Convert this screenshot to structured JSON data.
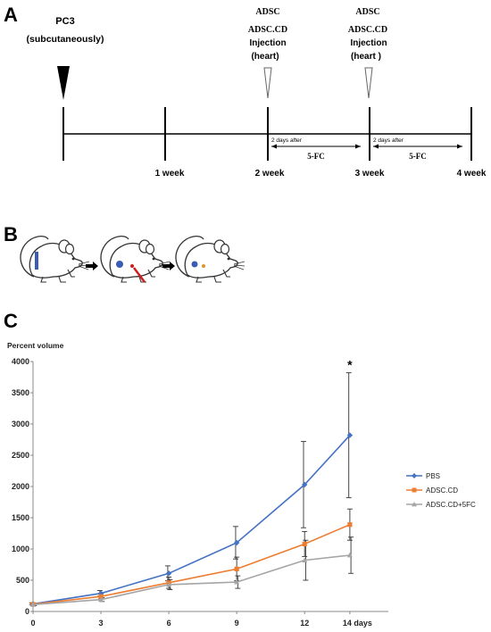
{
  "panels": {
    "a": "A",
    "b": "B",
    "c": "C"
  },
  "timeline": {
    "pc3_label": "PC3",
    "pc3_sub": "(subcutaneously)",
    "weeks": [
      "1 week",
      "2 week",
      "3 week",
      "4 week"
    ],
    "injections": [
      {
        "line1": "ADSC",
        "line2": "ADSC.CD",
        "line3": "Injection",
        "line4": "(heart)"
      },
      {
        "line1": "ADSC",
        "line2": "ADSC.CD",
        "line3": "Injection",
        "line4": "(heart )"
      }
    ],
    "days_after": "2 days after",
    "treatment": "5-FC"
  },
  "chart_data": {
    "type": "line",
    "title": "",
    "ylabel": "Percent volume",
    "xlabel": "",
    "x": [
      0,
      3,
      6,
      9,
      12,
      14
    ],
    "x_tick_labels": [
      "0",
      "3",
      "6",
      "9",
      "12",
      "14 days"
    ],
    "xlim": [
      0,
      15.7
    ],
    "ylim": [
      0,
      4000
    ],
    "y_ticks": [
      0,
      500,
      1000,
      1500,
      2000,
      2500,
      3000,
      3500,
      4000
    ],
    "grid": false,
    "legend_position": "right",
    "annotation": "*",
    "series": [
      {
        "name": "PBS",
        "color": "#4472C4",
        "marker": "diamond",
        "values": [
          120,
          290,
          610,
          1100,
          2030,
          2820
        ],
        "errors": [
          15,
          45,
          120,
          260,
          690,
          1000
        ]
      },
      {
        "name": "ADSC.CD",
        "color": "#ED7D31",
        "marker": "square",
        "values": [
          115,
          240,
          460,
          680,
          1080,
          1390
        ],
        "errors": [
          15,
          40,
          90,
          190,
          200,
          250
        ]
      },
      {
        "name": "ADSC.CD+5FC",
        "color": "#A5A5A5",
        "marker": "triangle",
        "values": [
          110,
          190,
          430,
          470,
          820,
          900
        ],
        "errors": [
          15,
          30,
          80,
          100,
          320,
          290
        ]
      }
    ]
  }
}
